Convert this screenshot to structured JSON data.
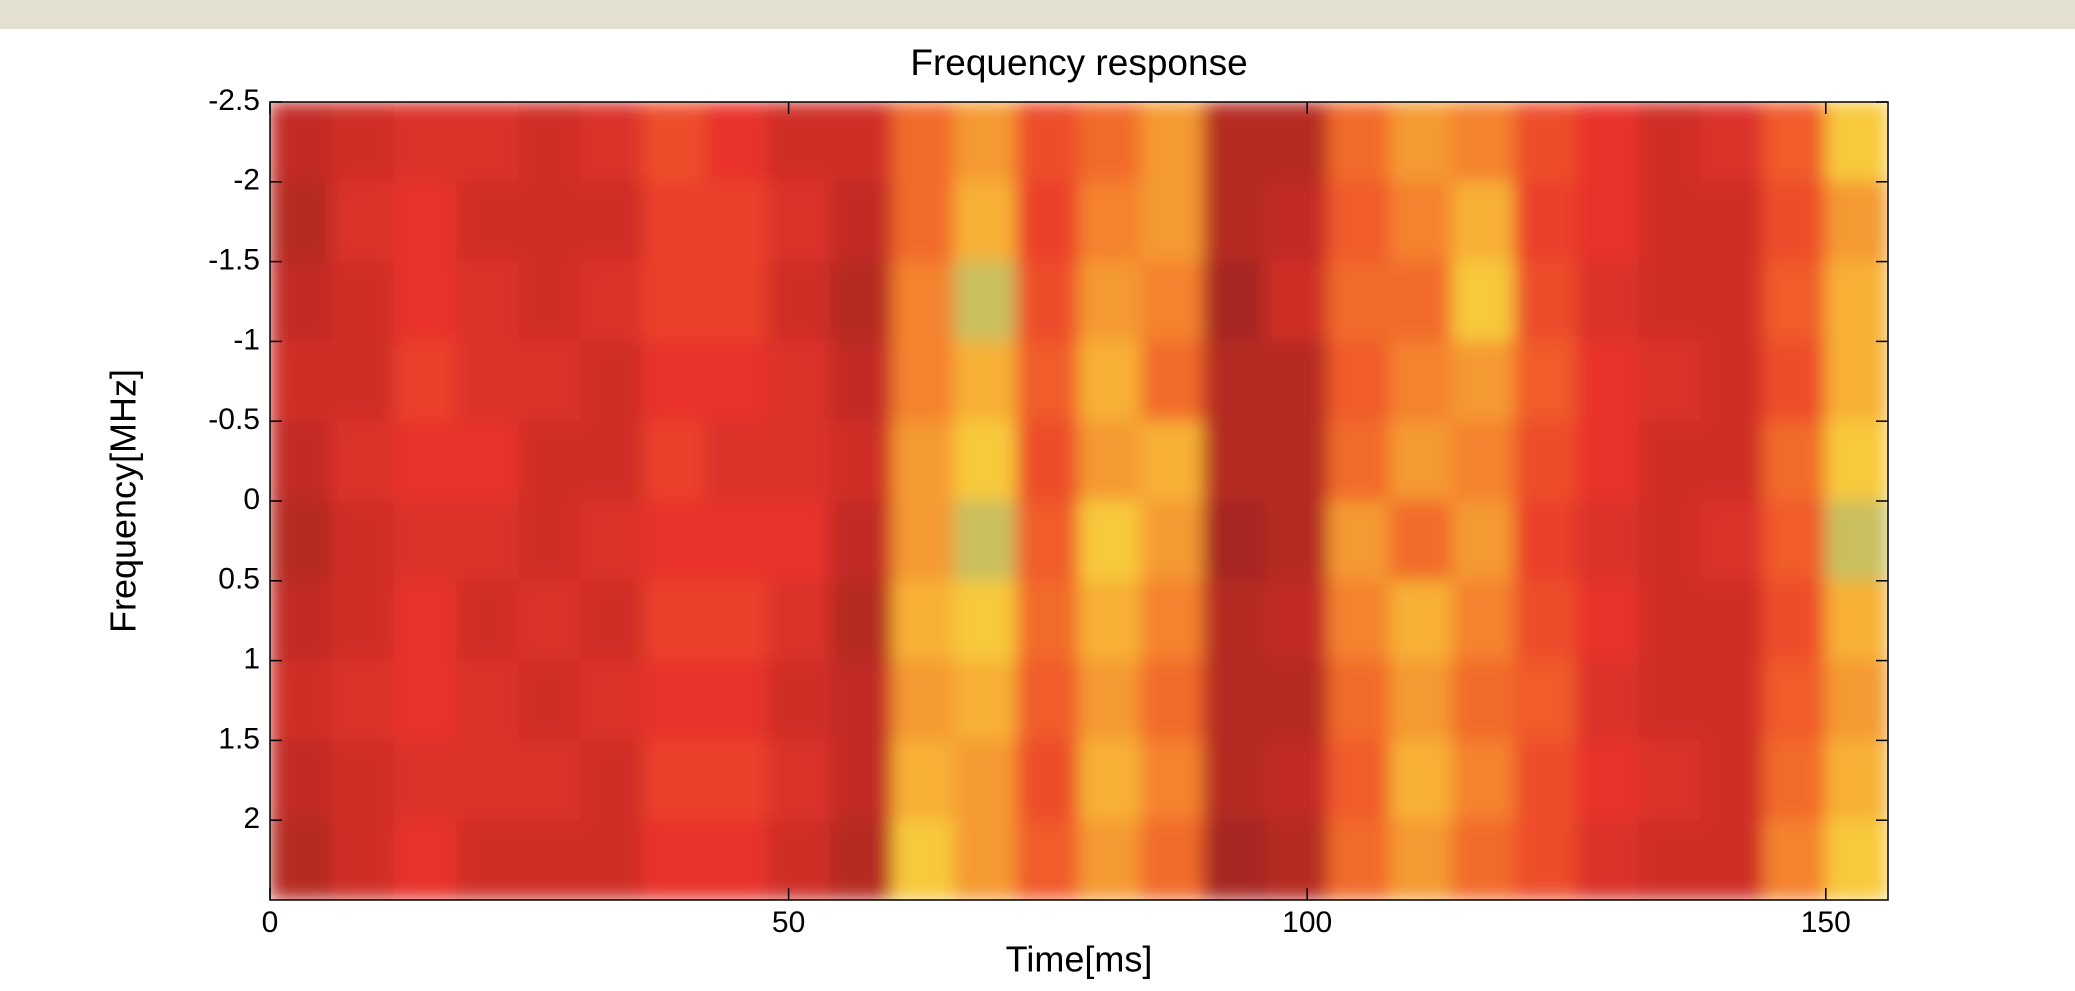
{
  "chart_data": {
    "type": "heatmap",
    "title": "Frequency response",
    "xlabel": "Time[ms]",
    "ylabel": "Frequency[MHz]",
    "xlim": [
      0,
      156
    ],
    "ylim": [
      -2.5,
      2.5
    ],
    "yreverse": true,
    "xticks": [
      0,
      50,
      100,
      150
    ],
    "yticks": [
      -2.5,
      -2,
      -1.5,
      -1,
      -0.5,
      0,
      0.5,
      1,
      1.5,
      2
    ],
    "xbins": [
      0,
      6,
      12,
      18,
      24,
      30,
      36,
      42,
      48,
      54,
      60,
      66,
      72,
      78,
      84,
      90,
      96,
      102,
      108,
      114,
      120,
      126,
      132,
      138,
      144,
      150,
      156
    ],
    "ybins": [
      -2.5,
      -2,
      -1.5,
      -1,
      -0.5,
      0,
      0.5,
      1,
      1.5,
      2,
      2.5
    ],
    "colormap": [
      "#7a1a18",
      "#b52a24",
      "#e8322a",
      "#f26a2a",
      "#f8c93a",
      "#3aa0c8"
    ],
    "z": [
      [
        0.25,
        0.3,
        0.35,
        0.35,
        0.3,
        0.35,
        0.5,
        0.4,
        0.3,
        0.3,
        0.6,
        0.7,
        0.5,
        0.6,
        0.7,
        0.2,
        0.2,
        0.6,
        0.7,
        0.65,
        0.5,
        0.4,
        0.3,
        0.35,
        0.55,
        0.8
      ],
      [
        0.2,
        0.35,
        0.4,
        0.3,
        0.3,
        0.3,
        0.45,
        0.45,
        0.35,
        0.25,
        0.6,
        0.75,
        0.45,
        0.65,
        0.7,
        0.2,
        0.25,
        0.55,
        0.65,
        0.75,
        0.45,
        0.4,
        0.3,
        0.3,
        0.5,
        0.7
      ],
      [
        0.25,
        0.3,
        0.4,
        0.35,
        0.3,
        0.35,
        0.45,
        0.45,
        0.3,
        0.2,
        0.65,
        0.85,
        0.5,
        0.7,
        0.65,
        0.15,
        0.3,
        0.6,
        0.6,
        0.8,
        0.5,
        0.35,
        0.3,
        0.3,
        0.55,
        0.75
      ],
      [
        0.3,
        0.3,
        0.45,
        0.35,
        0.35,
        0.3,
        0.4,
        0.4,
        0.35,
        0.25,
        0.65,
        0.75,
        0.55,
        0.75,
        0.6,
        0.2,
        0.2,
        0.55,
        0.65,
        0.7,
        0.55,
        0.4,
        0.35,
        0.3,
        0.5,
        0.75
      ],
      [
        0.25,
        0.35,
        0.4,
        0.4,
        0.3,
        0.3,
        0.45,
        0.35,
        0.35,
        0.3,
        0.7,
        0.8,
        0.5,
        0.7,
        0.75,
        0.2,
        0.2,
        0.6,
        0.7,
        0.65,
        0.5,
        0.4,
        0.3,
        0.3,
        0.6,
        0.8
      ],
      [
        0.2,
        0.3,
        0.35,
        0.35,
        0.3,
        0.35,
        0.4,
        0.4,
        0.4,
        0.25,
        0.7,
        0.85,
        0.55,
        0.8,
        0.7,
        0.15,
        0.2,
        0.7,
        0.6,
        0.7,
        0.45,
        0.35,
        0.3,
        0.35,
        0.55,
        0.85
      ],
      [
        0.25,
        0.3,
        0.4,
        0.3,
        0.35,
        0.3,
        0.45,
        0.45,
        0.35,
        0.2,
        0.75,
        0.8,
        0.6,
        0.75,
        0.65,
        0.2,
        0.25,
        0.65,
        0.75,
        0.65,
        0.5,
        0.4,
        0.3,
        0.3,
        0.5,
        0.75
      ],
      [
        0.3,
        0.35,
        0.4,
        0.35,
        0.3,
        0.35,
        0.4,
        0.4,
        0.3,
        0.25,
        0.7,
        0.75,
        0.55,
        0.7,
        0.6,
        0.2,
        0.2,
        0.6,
        0.7,
        0.6,
        0.55,
        0.35,
        0.3,
        0.3,
        0.55,
        0.7
      ],
      [
        0.25,
        0.3,
        0.35,
        0.35,
        0.35,
        0.3,
        0.45,
        0.45,
        0.35,
        0.25,
        0.75,
        0.7,
        0.5,
        0.75,
        0.65,
        0.2,
        0.25,
        0.55,
        0.75,
        0.65,
        0.5,
        0.4,
        0.35,
        0.3,
        0.6,
        0.75
      ],
      [
        0.2,
        0.3,
        0.4,
        0.3,
        0.3,
        0.3,
        0.4,
        0.4,
        0.3,
        0.2,
        0.8,
        0.7,
        0.55,
        0.7,
        0.6,
        0.15,
        0.2,
        0.6,
        0.7,
        0.6,
        0.5,
        0.35,
        0.3,
        0.3,
        0.65,
        0.8
      ]
    ]
  }
}
